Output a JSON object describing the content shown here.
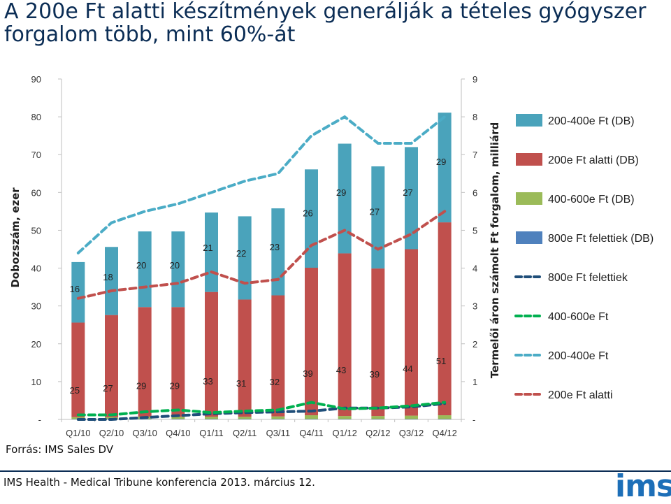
{
  "title": "A 200e Ft alatti készítmények generálják a tételes gyógyszer forgalom több, mint 60%-át",
  "source": "Forrás: IMS Sales DV",
  "footer": "IMS Health - Medical Tribune konferencia 2013. március 12.",
  "logo_text": "ims",
  "colors": {
    "bar_200_400": "#4aa3bb",
    "bar_under_200": "#c0504d",
    "bar_400_600": "#9bbb59",
    "bar_over_800": "#4f81bd",
    "line_over_800": "#1f4e79",
    "line_400_600": "#00b050",
    "line_200_400": "#4bacc6",
    "line_under_200": "#c0504d"
  },
  "chart_data": {
    "type": "bar",
    "stacked": true,
    "categories": [
      "Q1/10",
      "Q2/10",
      "Q3/10",
      "Q4/10",
      "Q1/11",
      "Q2/11",
      "Q3/11",
      "Q4/11",
      "Q1/12",
      "Q2/12",
      "Q3/12",
      "Q4/12"
    ],
    "ylabel": "Dobozszám, ezer",
    "y2label": "Termelői áron számolt Ft forgalom, milliárd",
    "ylim": [
      0,
      90
    ],
    "y2lim": [
      0,
      9
    ],
    "yticks": [
      "-",
      "10",
      "20",
      "30",
      "40",
      "50",
      "60",
      "70",
      "80",
      "90"
    ],
    "y2ticks": [
      "-",
      "1",
      "2",
      "3",
      "4",
      "5",
      "6",
      "7",
      "8",
      "9"
    ],
    "bar_series": [
      {
        "name": "800e Ft felettiek (DB)",
        "color_key": "bar_over_800",
        "values": [
          0.1,
          0.1,
          0.1,
          0.1,
          0.1,
          0.1,
          0.1,
          0.1,
          0.1,
          0.1,
          0.1,
          0.1
        ]
      },
      {
        "name": "400-600e Ft (DB)",
        "color_key": "bar_400_600",
        "values": [
          0.5,
          0.5,
          0.6,
          0.6,
          0.6,
          0.6,
          0.7,
          1.0,
          0.8,
          0.8,
          0.9,
          1.0
        ]
      },
      {
        "name": "200e Ft alatti (DB)",
        "color_key": "bar_under_200",
        "values": [
          25,
          27,
          29,
          29,
          33,
          31,
          32,
          39,
          43,
          39,
          44,
          51
        ],
        "labels": [
          "25",
          "27",
          "29",
          "29",
          "33",
          "31",
          "32",
          "39",
          "43",
          "39",
          "44",
          "51"
        ]
      },
      {
        "name": "200-400e Ft (DB)",
        "color_key": "bar_200_400",
        "values": [
          16,
          18,
          20,
          20,
          21,
          22,
          23,
          26,
          29,
          27,
          27,
          29
        ],
        "labels": [
          "16",
          "18",
          "20",
          "20",
          "21",
          "22",
          "23",
          "26",
          "29",
          "27",
          "27",
          "29"
        ]
      }
    ],
    "line_series": [
      {
        "name": "800e Ft felettiek",
        "color_key": "line_over_800",
        "axis": "y2",
        "values": [
          0.0,
          0.0,
          0.05,
          0.1,
          0.15,
          0.18,
          0.2,
          0.22,
          0.3,
          0.3,
          0.33,
          0.42
        ]
      },
      {
        "name": "400-600e Ft",
        "color_key": "line_400_600",
        "axis": "y2",
        "values": [
          0.12,
          0.12,
          0.2,
          0.25,
          0.18,
          0.22,
          0.25,
          0.45,
          0.28,
          0.3,
          0.36,
          0.45
        ]
      },
      {
        "name": "200-400e Ft",
        "color_key": "line_200_400",
        "axis": "y2",
        "values": [
          4.4,
          5.2,
          5.5,
          5.7,
          6.0,
          6.3,
          6.5,
          7.5,
          8.0,
          7.3,
          7.3,
          8.0
        ]
      },
      {
        "name": "200e Ft alatti",
        "color_key": "line_under_200",
        "axis": "y2",
        "values": [
          3.2,
          3.4,
          3.5,
          3.6,
          3.9,
          3.6,
          3.7,
          4.6,
          5.0,
          4.5,
          4.9,
          5.5
        ]
      }
    ],
    "legend_order": [
      "200-400e Ft (DB)",
      "200e Ft alatti (DB)",
      "400-600e Ft (DB)",
      "800e Ft felettiek (DB)",
      "800e Ft felettiek",
      "400-600e Ft",
      "200-400e Ft",
      "200e Ft alatti"
    ],
    "legend_position": "right",
    "grid": false
  }
}
